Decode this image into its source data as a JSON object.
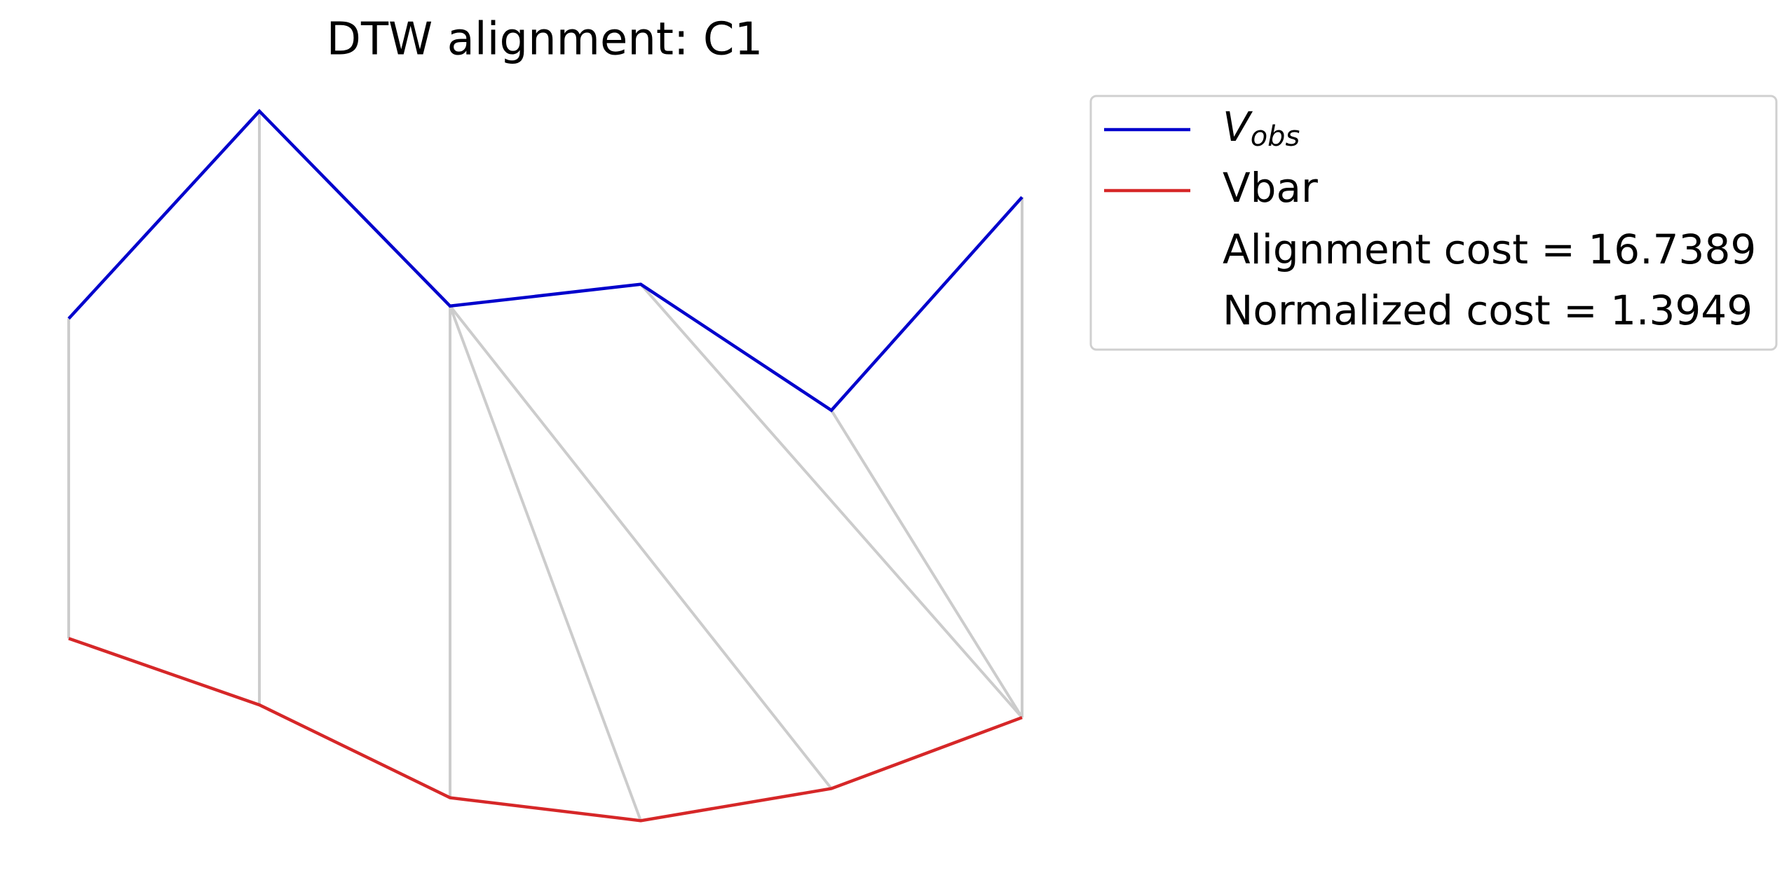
{
  "chart_data": {
    "type": "line",
    "title": "DTW alignment: C1",
    "x": [
      0,
      1,
      2,
      3,
      4,
      5
    ],
    "xlim": [
      0,
      5
    ],
    "ylim": [
      0,
      7.8
    ],
    "series": [
      {
        "name": "V",
        "name_subscript": "obs",
        "color": "#0000cc",
        "values": [
          5.02,
          6.83,
          5.13,
          5.32,
          4.22,
          6.08
        ]
      },
      {
        "name": "Vbar",
        "color": "#d62728",
        "values": [
          2.23,
          1.65,
          0.84,
          0.64,
          0.92,
          1.54
        ]
      }
    ],
    "alignment": [
      [
        0,
        0
      ],
      [
        1,
        1
      ],
      [
        2,
        2
      ],
      [
        2,
        3
      ],
      [
        2,
        4
      ],
      [
        3,
        5
      ],
      [
        4,
        5
      ],
      [
        5,
        5
      ]
    ],
    "alignment_color": "#cccccc",
    "legend_notes": [
      "Alignment cost = 16.7389",
      "Normalized cost = 1.3949"
    ]
  }
}
